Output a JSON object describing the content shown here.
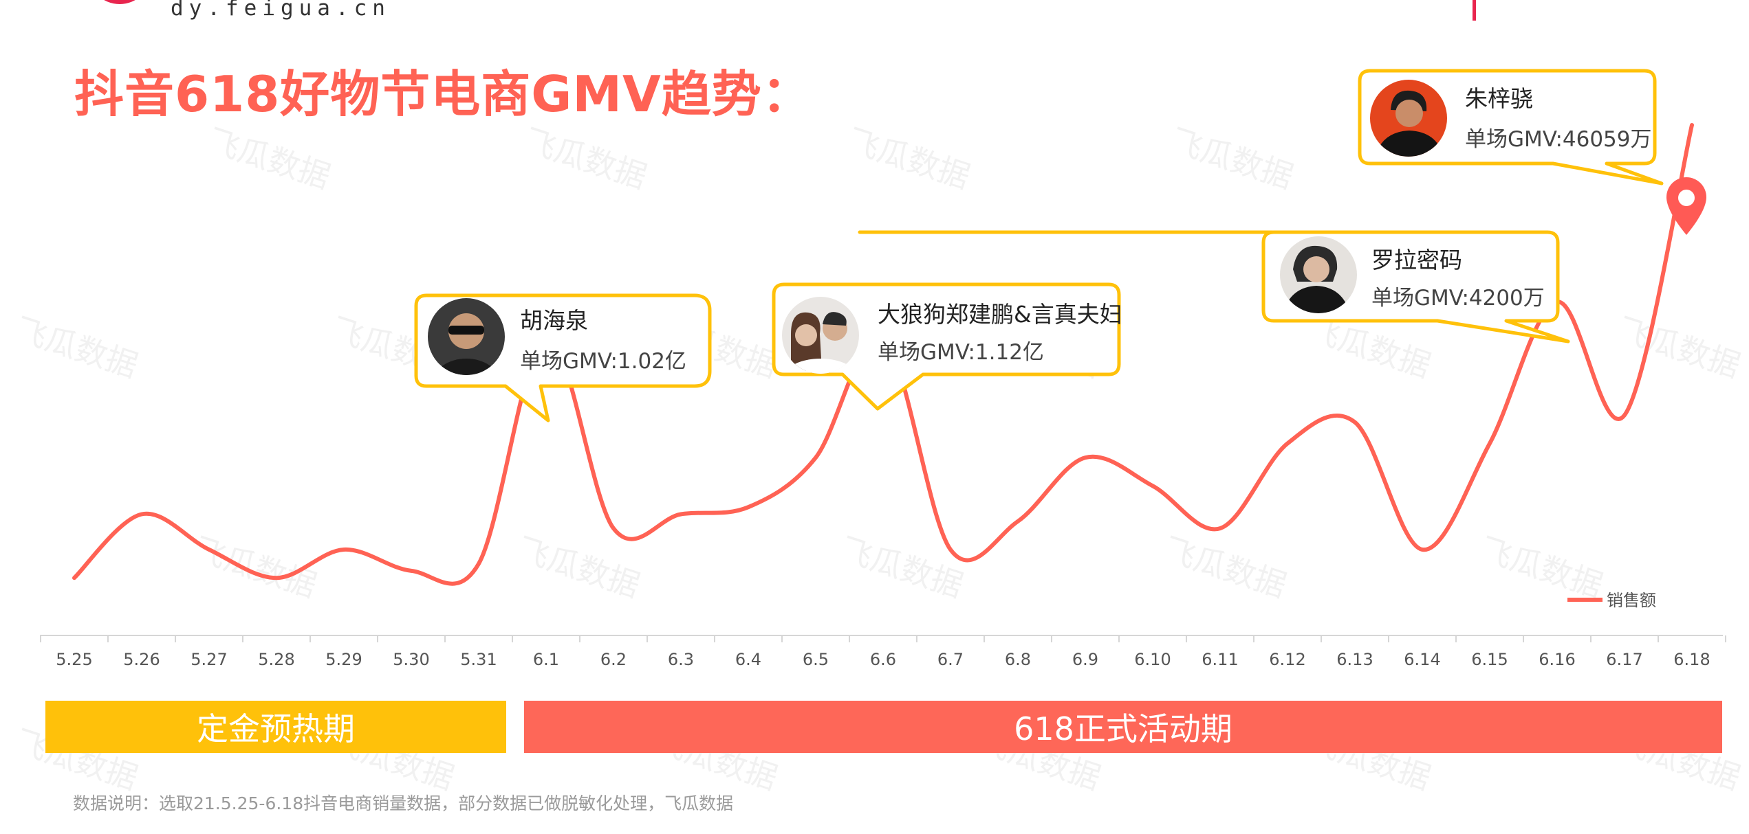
{
  "header": {
    "logo_url": "dy.feigua.cn",
    "title": "抖音618好物节电商GMV趋势："
  },
  "watermark_text": "飞瓜数据",
  "chart_data": {
    "type": "line",
    "title": "抖音618好物节电商GMV趋势：",
    "xlabel": "",
    "ylabel": "",
    "categories": [
      "5.25",
      "5.26",
      "5.27",
      "5.28",
      "5.29",
      "5.30",
      "5.31",
      "6.1",
      "6.2",
      "6.3",
      "6.4",
      "6.5",
      "6.6",
      "6.7",
      "6.8",
      "6.9",
      "6.10",
      "6.11",
      "6.12",
      "6.13",
      "6.14",
      "6.15",
      "6.16",
      "6.17",
      "6.18"
    ],
    "series": [
      {
        "name": "销售额",
        "color": "#ff6254",
        "values": [
          6,
          15,
          10,
          6,
          10,
          7,
          8,
          40,
          13,
          15,
          16,
          23,
          40,
          10,
          14,
          23,
          19,
          13,
          25,
          28,
          10,
          25,
          45,
          29,
          70
        ]
      }
    ],
    "ylim": [
      0,
      70
    ],
    "grid": false,
    "legend_position": "bottom-right",
    "annotations": [
      {
        "index": 7,
        "name": "胡海泉",
        "value_text": "单场GMV:1.02亿",
        "avatar": "avatar-photo"
      },
      {
        "index": 12,
        "name": "大狼狗郑建鹏&言真夫妇",
        "value_text": "单场GMV:1.12亿",
        "avatar": "avatar-photo"
      },
      {
        "index": 22,
        "name": "罗拉密码",
        "value_text": "单场GMV:4200万",
        "avatar": "avatar-photo"
      },
      {
        "index": 24,
        "name": "朱梓骁",
        "value_text": "单场GMV:46059万",
        "avatar": "avatar-photo",
        "marker": "map-pin-icon"
      }
    ]
  },
  "phases": {
    "pre": "定金预热期",
    "main": "618正式活动期"
  },
  "footnote": "数据说明：选取21.5.25-6.18抖音电商销量数据，部分数据已做脱敏化处理，飞瓜数据",
  "colors": {
    "accent": "#ff6254",
    "callout_border": "#ffc10a",
    "pre_phase": "#ffc10a",
    "main_phase": "#fe6758"
  }
}
